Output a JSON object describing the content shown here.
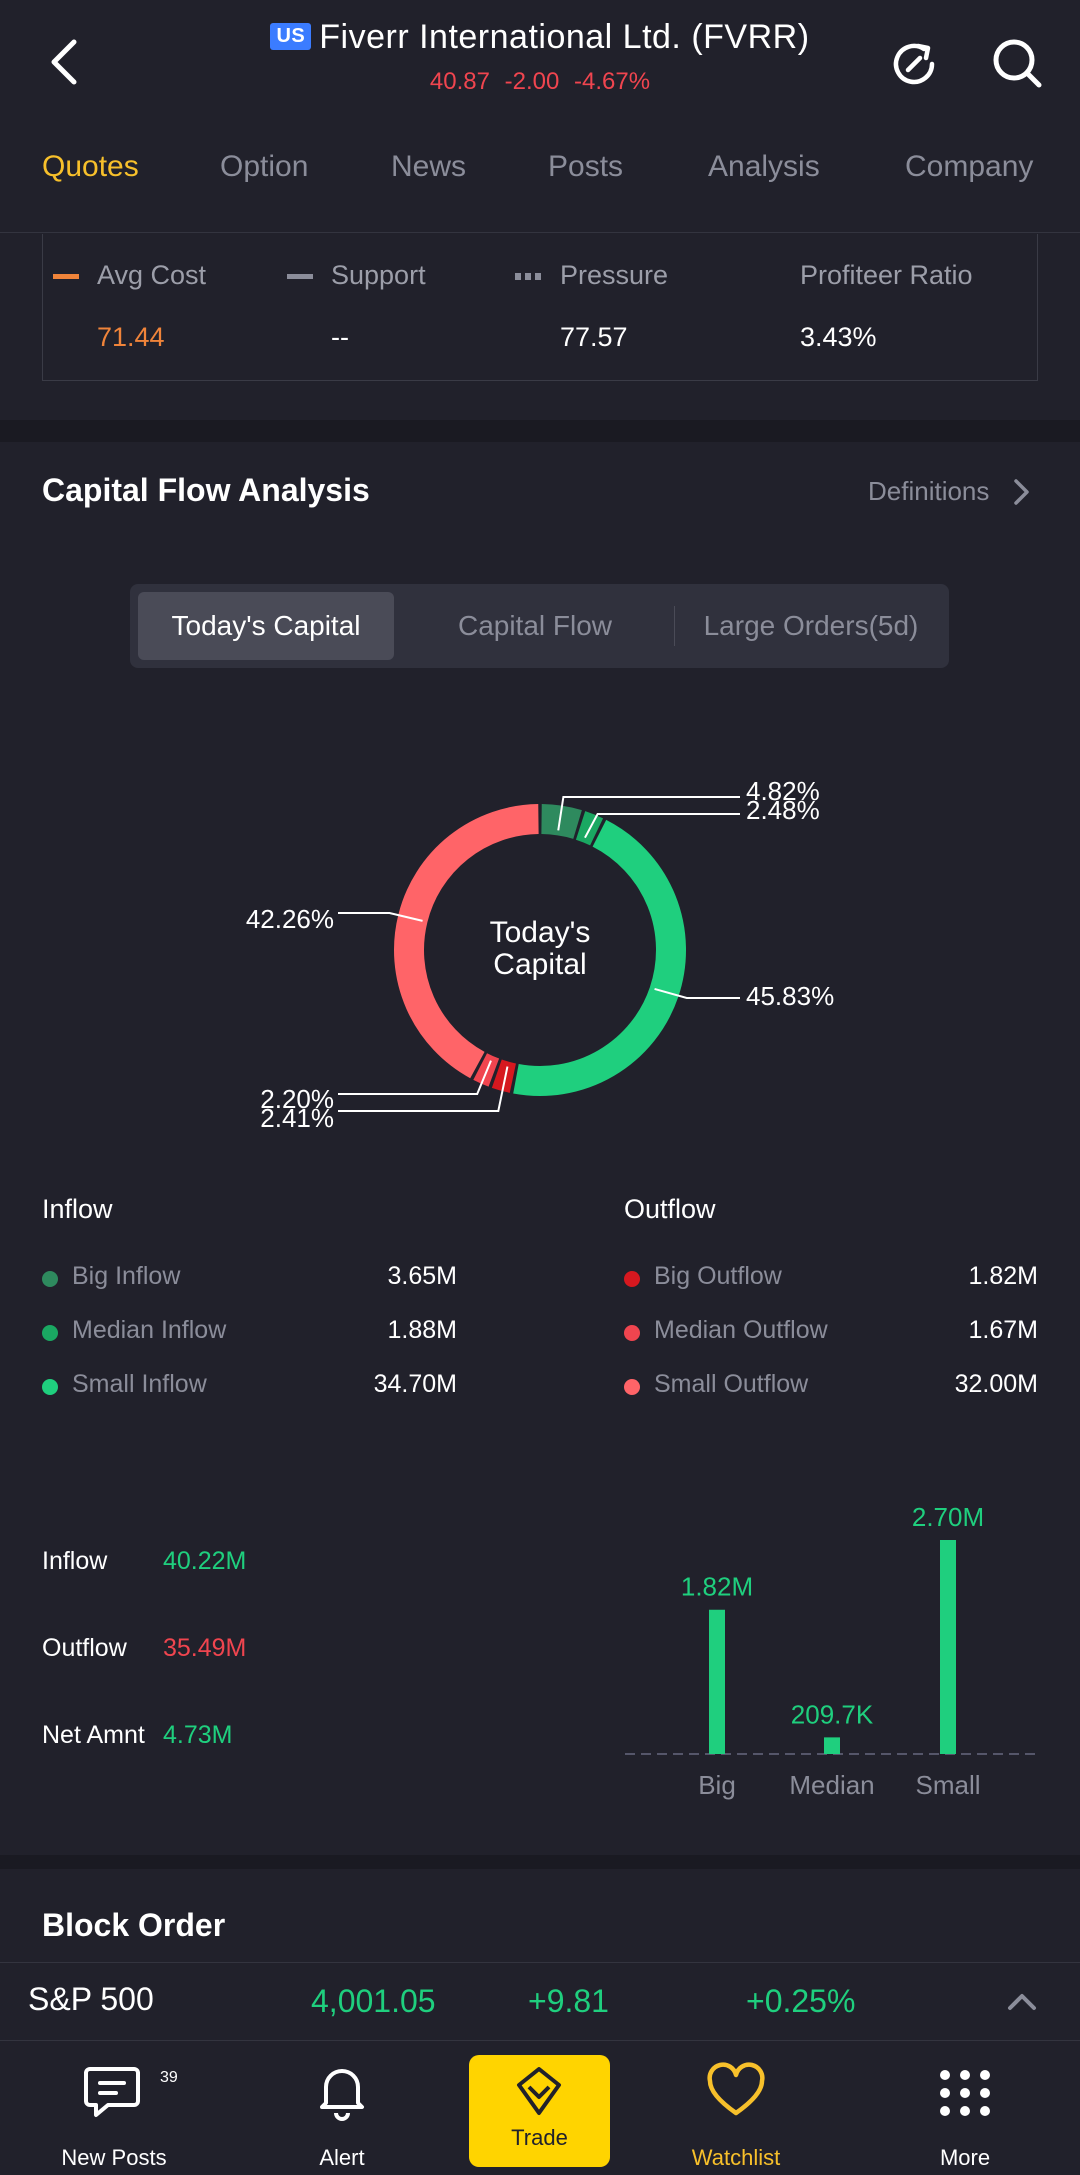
{
  "header": {
    "market_badge": "US",
    "title": "Fiverr International Ltd. (FVRR)",
    "price": "40.87",
    "change": "-2.00",
    "change_pct": "-4.67%"
  },
  "tabs": [
    "Quotes",
    "Option",
    "News",
    "Posts",
    "Analysis",
    "Company"
  ],
  "active_tab": "Quotes",
  "cost": {
    "items": [
      {
        "label": "Avg Cost",
        "value": "71.44",
        "color": "#f0843a"
      },
      {
        "label": "Support",
        "value": "--",
        "color": "#8b8d9a"
      },
      {
        "label": "Pressure",
        "value": "77.57",
        "color": "#8b8d9a"
      },
      {
        "label": "Profiteer Ratio",
        "value": "3.43%"
      }
    ]
  },
  "capital": {
    "title": "Capital Flow Analysis",
    "definitions": "Definitions",
    "segments": [
      "Today's Capital",
      "Capital Flow",
      "Large Orders(5d)"
    ],
    "donut_center": [
      "Today's",
      "Capital"
    ]
  },
  "chart_data": [
    {
      "type": "pie",
      "title": "",
      "center_label": "Today's Capital",
      "slices": [
        {
          "name": "Big Inflow",
          "value": 4.82,
          "color": "#2e8a5e"
        },
        {
          "name": "Median Inflow",
          "value": 2.48,
          "color": "#1aa862"
        },
        {
          "name": "Small Inflow",
          "value": 45.83,
          "color": "#1fcf7e"
        },
        {
          "name": "Big Outflow",
          "value": 2.41,
          "color": "#d6181f"
        },
        {
          "name": "Median Outflow",
          "value": 2.2,
          "color": "#f0454f"
        },
        {
          "name": "Small Outflow",
          "value": 42.26,
          "color": "#ff6468"
        }
      ],
      "labels": [
        "4.82%",
        "2.48%",
        "45.83%",
        "2.41%",
        "2.20%",
        "42.26%"
      ]
    },
    {
      "type": "bar",
      "categories": [
        "Big",
        "Median",
        "Small"
      ],
      "values": [
        1.82,
        0.2097,
        2.7
      ],
      "value_labels": [
        "1.82M",
        "209.7K",
        "2.70M"
      ],
      "unit": "M",
      "color": "#1fcf7e"
    }
  ],
  "inflow": {
    "title": "Inflow",
    "items": [
      {
        "name": "Big Inflow",
        "value": "3.65M",
        "color": "#2e8a5e"
      },
      {
        "name": "Median Inflow",
        "value": "1.88M",
        "color": "#1aa862"
      },
      {
        "name": "Small Inflow",
        "value": "34.70M",
        "color": "#1fcf7e"
      }
    ]
  },
  "outflow": {
    "title": "Outflow",
    "items": [
      {
        "name": "Big Outflow",
        "value": "1.82M",
        "color": "#d6181f"
      },
      {
        "name": "Median Outflow",
        "value": "1.67M",
        "color": "#f0454f"
      },
      {
        "name": "Small Outflow",
        "value": "32.00M",
        "color": "#ff6468"
      }
    ]
  },
  "summary": [
    {
      "label": "Inflow",
      "value": "40.22M",
      "color": "#1fcf7e"
    },
    {
      "label": "Outflow",
      "value": "35.49M",
      "color": "#f0454f"
    },
    {
      "label": "Net Amnt",
      "value": "4.73M",
      "color": "#1fcf7e"
    }
  ],
  "block_order": {
    "title": "Block Order"
  },
  "index": {
    "name": "S&P 500",
    "value": "4,001.05",
    "change": "+9.81",
    "change_pct": "+0.25%"
  },
  "nav": {
    "items": [
      {
        "label": "New Posts",
        "icon": "posts-icon",
        "badge": "39"
      },
      {
        "label": "Alert",
        "icon": "bell-icon"
      },
      {
        "label": "Trade",
        "icon": "trade-icon"
      },
      {
        "label": "Watchlist",
        "icon": "heart-icon"
      },
      {
        "label": "More",
        "icon": "grid-icon"
      }
    ]
  }
}
